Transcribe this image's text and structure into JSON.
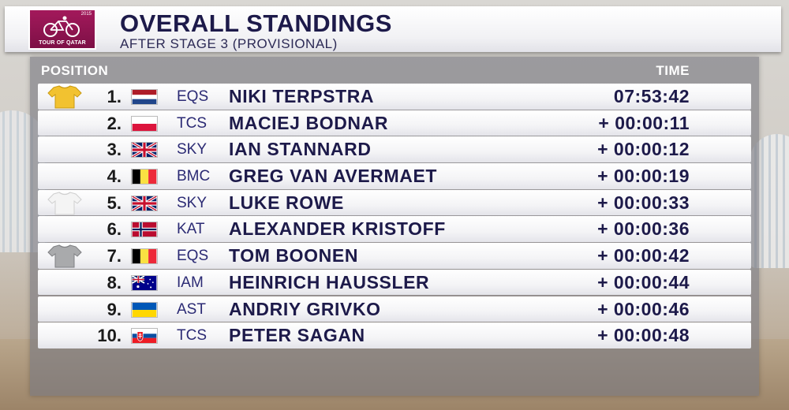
{
  "header": {
    "logo_text": "TOUR OF QATAR",
    "logo_year": "2015",
    "title": "OVERALL STANDINGS",
    "subtitle": "AFTER STAGE 3 (PROVISIONAL)"
  },
  "table": {
    "col_position": "POSITION",
    "col_time": "TIME",
    "rows": [
      {
        "pos": "1.",
        "flag": "netherlands",
        "team": "EQS",
        "name": "NIKI TERPSTRA",
        "time": "07:53:42",
        "jersey": "gold"
      },
      {
        "pos": "2.",
        "flag": "poland",
        "team": "TCS",
        "name": "MACIEJ BODNAR",
        "time": "+ 00:00:11",
        "jersey": "none"
      },
      {
        "pos": "3.",
        "flag": "uk",
        "team": "SKY",
        "name": "IAN STANNARD",
        "time": "+ 00:00:12",
        "jersey": "none"
      },
      {
        "pos": "4.",
        "flag": "belgium",
        "team": "BMC",
        "name": "GREG VAN AVERMAET",
        "time": "+ 00:00:19",
        "jersey": "none"
      },
      {
        "pos": "5.",
        "flag": "uk",
        "team": "SKY",
        "name": "LUKE ROWE",
        "time": "+ 00:00:33",
        "jersey": "white"
      },
      {
        "pos": "6.",
        "flag": "norway",
        "team": "KAT",
        "name": "ALEXANDER KRISTOFF",
        "time": "+ 00:00:36",
        "jersey": "none"
      },
      {
        "pos": "7.",
        "flag": "belgium",
        "team": "EQS",
        "name": "TOM BOONEN",
        "time": "+ 00:00:42",
        "jersey": "grey"
      },
      {
        "pos": "8.",
        "flag": "australia",
        "team": "IAM",
        "name": "HEINRICH HAUSSLER",
        "time": "+ 00:00:44",
        "jersey": "none"
      },
      {
        "pos": "9.",
        "flag": "ukraine",
        "team": "AST",
        "name": "ANDRIY GRIVKO",
        "time": "+ 00:00:46",
        "jersey": "none"
      },
      {
        "pos": "10.",
        "flag": "slovakia",
        "team": "TCS",
        "name": "PETER SAGAN",
        "time": "+ 00:00:48",
        "jersey": "none"
      }
    ]
  },
  "colors": {
    "title_navy": "#1d1a4a",
    "team_blue": "#2b2a74",
    "logo_maroon": "#a3195b",
    "gold_jersey": "#f2c230",
    "white_jersey": "#f4f4f4",
    "grey_jersey": "#a9aaac"
  }
}
